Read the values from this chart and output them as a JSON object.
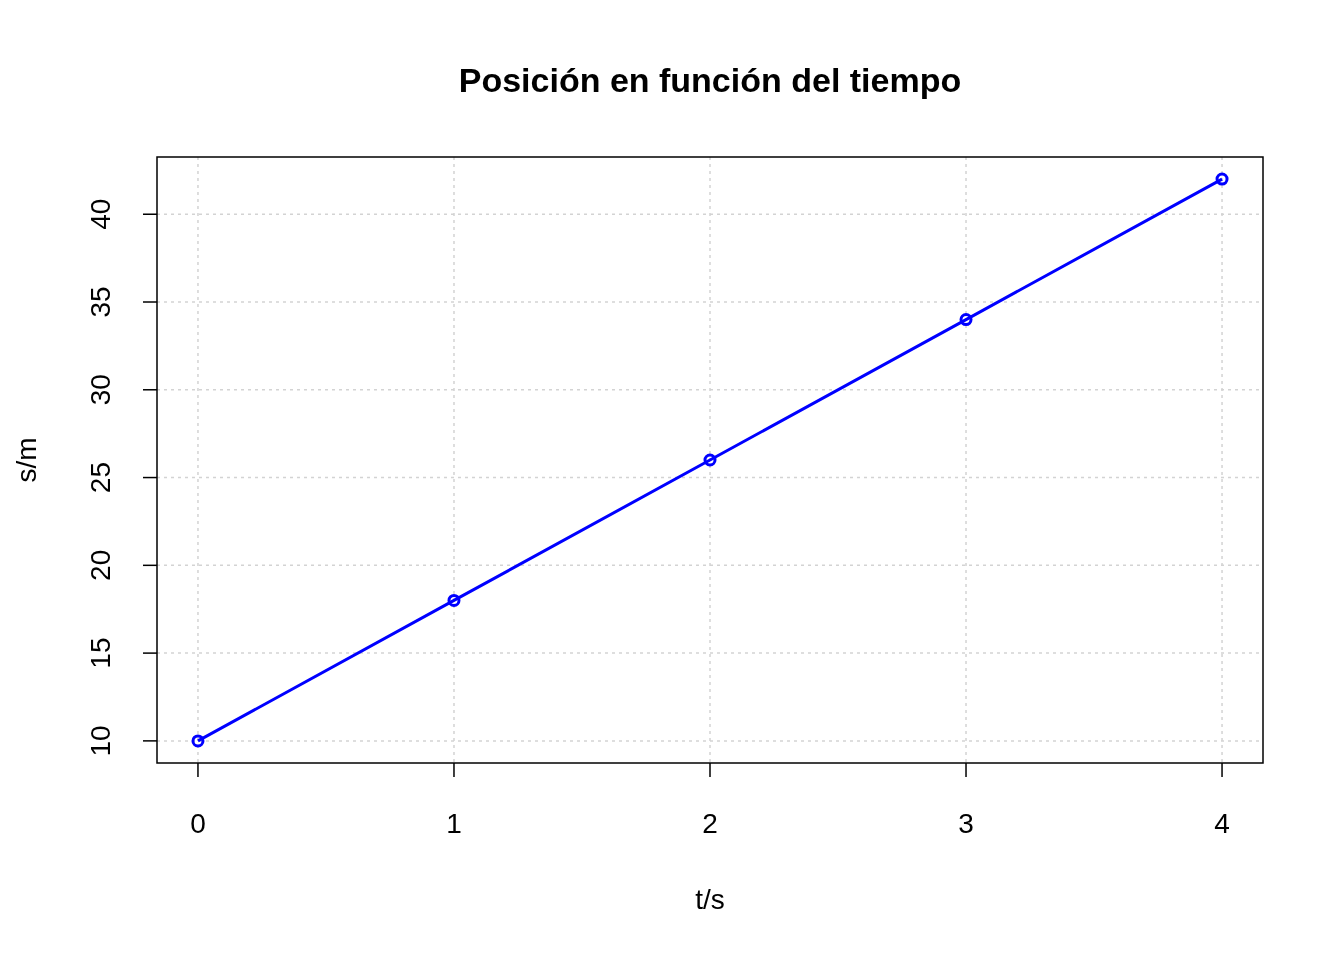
{
  "chart_data": {
    "type": "line",
    "title": "Posición en función del tiempo",
    "xlabel": "t/s",
    "ylabel": "s/m",
    "x": [
      0,
      1,
      2,
      3,
      4
    ],
    "series": [
      {
        "color": "#0000ff",
        "values": [
          10,
          18,
          26,
          34,
          42
        ]
      }
    ],
    "xlim": [
      -0.16,
      4.16
    ],
    "ylim": [
      8.74,
      43.26
    ],
    "xticks": [
      0,
      1,
      2,
      3,
      4
    ],
    "yticks": [
      10,
      15,
      20,
      25,
      30,
      35,
      40
    ],
    "grid": true,
    "marker": "circle",
    "line_style": "solid"
  }
}
